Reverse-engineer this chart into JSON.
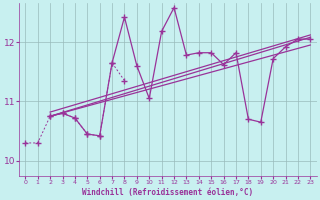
{
  "xlabel": "Windchill (Refroidissement éolien,°C)",
  "background_color": "#c8f0f0",
  "line_color": "#993399",
  "grid_color": "#99bbbb",
  "xlim": [
    -0.5,
    23.5
  ],
  "ylim": [
    9.75,
    12.65
  ],
  "yticks": [
    10,
    11,
    12
  ],
  "xticks": [
    0,
    1,
    2,
    3,
    4,
    5,
    6,
    7,
    8,
    9,
    10,
    11,
    12,
    13,
    14,
    15,
    16,
    17,
    18,
    19,
    20,
    21,
    22,
    23
  ],
  "dot_x": [
    0,
    1,
    2,
    3,
    4,
    5,
    6,
    7,
    8
  ],
  "dot_y": [
    10.3,
    10.3,
    10.75,
    10.8,
    10.72,
    10.45,
    10.42,
    11.65,
    11.35
  ],
  "main_x": [
    2,
    3,
    4,
    5,
    6,
    7,
    8,
    9,
    10,
    11,
    12,
    13,
    14,
    15,
    16,
    17,
    18,
    19,
    20,
    21,
    22,
    23
  ],
  "main_y": [
    10.75,
    10.8,
    10.72,
    10.45,
    10.42,
    11.65,
    12.42,
    11.6,
    11.05,
    12.18,
    12.58,
    11.78,
    11.82,
    11.82,
    11.62,
    11.82,
    10.7,
    10.65,
    11.72,
    11.92,
    12.05,
    12.05
  ],
  "straight_lines": [
    {
      "x": [
        2,
        23
      ],
      "y": [
        10.75,
        12.08
      ]
    },
    {
      "x": [
        2,
        23
      ],
      "y": [
        10.82,
        12.12
      ]
    },
    {
      "x": [
        2,
        23
      ],
      "y": [
        10.75,
        11.95
      ]
    }
  ]
}
